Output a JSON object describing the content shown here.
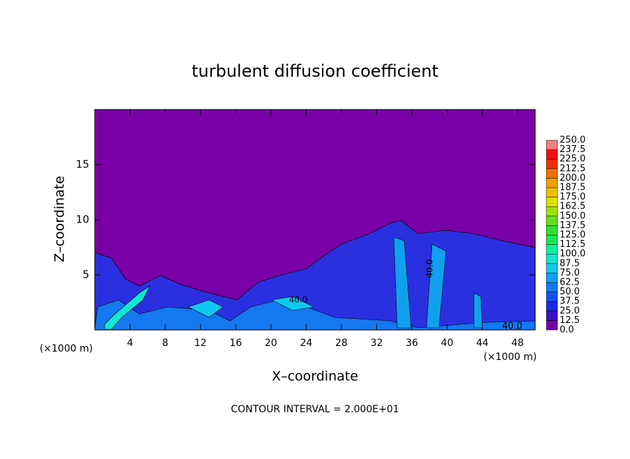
{
  "chart_data": {
    "type": "contour",
    "title": "turbulent diffusion coefficient",
    "x_label": "X–coordinate",
    "y_label": "Z–coordinate",
    "x_unit": "(×1000 m)",
    "footer": "CONTOUR INTERVAL = 2.000E+01",
    "xlim": [
      0,
      50
    ],
    "ylim": [
      0,
      20
    ],
    "xticks": [
      4,
      8,
      12,
      16,
      20,
      24,
      28,
      32,
      36,
      40,
      44,
      48
    ],
    "yticks": [
      5,
      10,
      15
    ],
    "contour_labels": [
      "40.0",
      "40.0",
      "40.0"
    ],
    "colorbar": {
      "levels": [
        {
          "value": 0,
          "label": "0.0"
        },
        12.5,
        {
          "value": 25,
          "label": "25.0"
        },
        37.5,
        {
          "value": 50,
          "label": "50.0"
        },
        62.5,
        {
          "value": 75,
          "label": "75.0"
        },
        87.5,
        {
          "value": 100,
          "label": "100.0"
        },
        112.5,
        {
          "value": 125,
          "label": "125.0"
        },
        137.5,
        {
          "value": 150,
          "label": "150.0"
        },
        162.5,
        {
          "value": 175,
          "label": "175.0"
        },
        187.5,
        {
          "value": 200,
          "label": "200.0"
        },
        212.5,
        {
          "value": 225,
          "label": "225.0"
        },
        237.5,
        {
          "value": 250,
          "label": "250.0"
        }
      ],
      "colors": [
        "#7a00a8",
        "#3a10c8",
        "#1a2ae6",
        "#1650f0",
        "#1478f0",
        "#10a0f0",
        "#10c8f0",
        "#10e6d0",
        "#10f0a0",
        "#18e850",
        "#30e030",
        "#60e020",
        "#a0e010",
        "#e0e000",
        "#f0c000",
        "#f0a000",
        "#f07000",
        "#f03000",
        "#f01010",
        "#f08080"
      ]
    }
  }
}
